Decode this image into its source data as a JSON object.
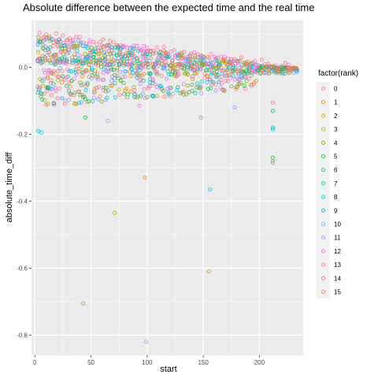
{
  "chart_data": {
    "type": "scatter",
    "title": "Absolute difference between the expected time and the real time",
    "xlabel": "start",
    "ylabel": "absolute_time_diff",
    "xlim": [
      -3,
      239
    ],
    "ylim": [
      -0.86,
      0.14
    ],
    "x_ticks": [
      0,
      50,
      100,
      150,
      200
    ],
    "x_tick_labels": [
      "0",
      "50",
      "100",
      "150",
      "200"
    ],
    "y_ticks": [
      0.0,
      -0.2,
      -0.4,
      -0.6,
      -0.8
    ],
    "y_tick_labels": [
      "0.0",
      "-0.2",
      "-0.4",
      "-0.6",
      "-0.8"
    ],
    "grid": true,
    "legend_title": "factor(rank)",
    "legend_position": "right",
    "marker": "open-circle",
    "panel_background": "#ebebeb",
    "gridline_color": "#ffffff",
    "series": [
      {
        "name": "0",
        "color": "#F8766D"
      },
      {
        "name": "1",
        "color": "#E58700"
      },
      {
        "name": "2",
        "color": "#C99800"
      },
      {
        "name": "3",
        "color": "#A3A500"
      },
      {
        "name": "4",
        "color": "#6BB100"
      },
      {
        "name": "5",
        "color": "#00BA38"
      },
      {
        "name": "6",
        "color": "#00BF7D"
      },
      {
        "name": "7",
        "color": "#00C0AF"
      },
      {
        "name": "8",
        "color": "#00BCD8"
      },
      {
        "name": "9",
        "color": "#00B0F6"
      },
      {
        "name": "10",
        "color": "#619CFF"
      },
      {
        "name": "11",
        "color": "#B983FF"
      },
      {
        "name": "12",
        "color": "#E76BF3"
      },
      {
        "name": "13",
        "color": "#FD61D1"
      },
      {
        "name": "14",
        "color": "#FF67A4"
      },
      {
        "name": "15",
        "color": "#F8766D"
      }
    ],
    "outliers": [
      {
        "x": 3,
        "y": -0.19,
        "series": 9
      },
      {
        "x": 6,
        "y": -0.195,
        "series": 8
      },
      {
        "x": 43,
        "y": -0.705,
        "series": 3
      },
      {
        "x": 71,
        "y": -0.435,
        "series": 2
      },
      {
        "x": 98,
        "y": -0.33,
        "series": 1
      },
      {
        "x": 99,
        "y": -0.82,
        "series": 11
      },
      {
        "x": 155,
        "y": -0.61,
        "series": 2
      },
      {
        "x": 156,
        "y": -0.365,
        "series": 8
      },
      {
        "x": 65,
        "y": -0.16,
        "series": 11
      },
      {
        "x": 93,
        "y": -0.115,
        "series": 12
      },
      {
        "x": 178,
        "y": -0.12,
        "series": 10
      },
      {
        "x": 212,
        "y": -0.27,
        "series": 5
      },
      {
        "x": 212,
        "y": -0.28,
        "series": 3
      },
      {
        "x": 212,
        "y": -0.285,
        "series": 10
      },
      {
        "x": 212,
        "y": -0.18,
        "series": 7
      },
      {
        "x": 212,
        "y": -0.185,
        "series": 9
      },
      {
        "x": 212,
        "y": -0.105,
        "series": 14
      },
      {
        "x": 212,
        "y": -0.13,
        "series": 6
      },
      {
        "x": 45,
        "y": -0.15,
        "series": 5
      },
      {
        "x": 148,
        "y": -0.15,
        "series": 3
      }
    ]
  }
}
